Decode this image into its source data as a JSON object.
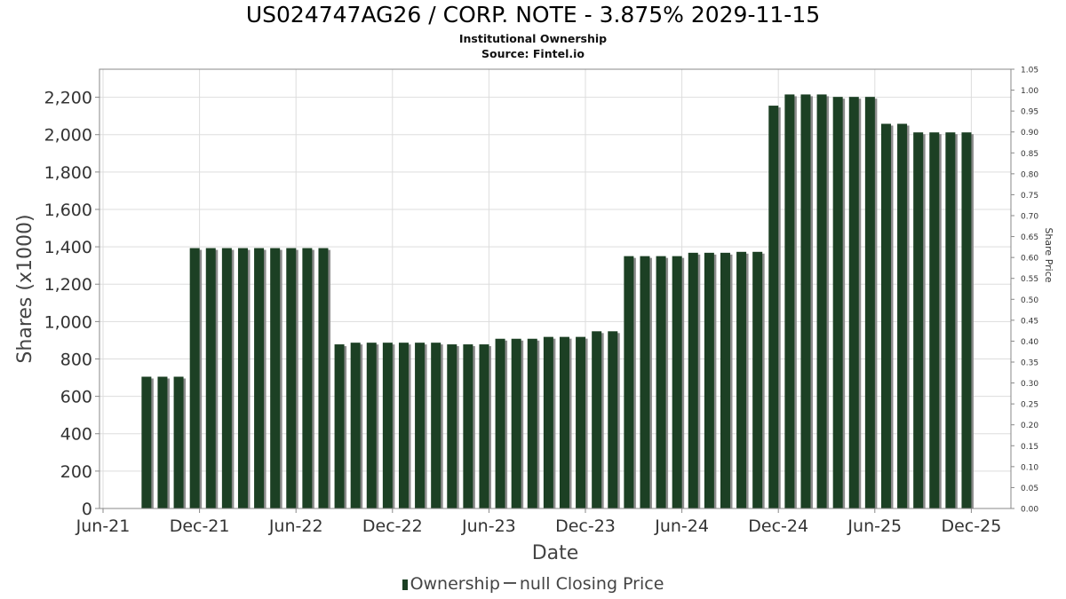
{
  "title": "US024747AG26 / CORP. NOTE - 3.875% 2029-11-15",
  "subtitle": "Institutional Ownership",
  "source": "Source: Fintel.io",
  "legend": {
    "ownership": "Ownership",
    "closing_price": "null Closing Price"
  },
  "colors": {
    "bar": "#1c4024",
    "bar_shadow": "#8c8c8c",
    "grid": "#dddddd",
    "frame": "#888888"
  },
  "chart_data": {
    "type": "bar",
    "title": "US024747AG26 / CORP. NOTE - 3.875% 2029-11-15",
    "xlabel": "Date",
    "ylabel": "Shares (x1000)",
    "y2label": "Share Price",
    "ylim": [
      0,
      2350
    ],
    "y2lim": [
      0,
      1.05
    ],
    "grid": true,
    "legend_position": "bottom",
    "x_tick_labels": [
      "Jun-21",
      "Dec-21",
      "Jun-22",
      "Dec-22",
      "Jun-23",
      "Dec-23",
      "Jun-24",
      "Dec-24",
      "Jun-25",
      "Dec-25"
    ],
    "y_tick_labels": [
      "0",
      "200",
      "400",
      "600",
      "800",
      "1,000",
      "1,200",
      "1,400",
      "1,600",
      "1,800",
      "2,000",
      "2,200"
    ],
    "y_ticks": [
      0,
      200,
      400,
      600,
      800,
      1000,
      1200,
      1400,
      1600,
      1800,
      2000,
      2200
    ],
    "y2_tick_labels": [
      "0.00",
      "0.05",
      "0.10",
      "0.15",
      "0.20",
      "0.25",
      "0.30",
      "0.35",
      "0.40",
      "0.45",
      "0.50",
      "0.55",
      "0.60",
      "0.65",
      "0.70",
      "0.75",
      "0.80",
      "0.85",
      "0.90",
      "0.95",
      "1.00",
      "1.05"
    ],
    "y2_ticks": [
      0,
      0.05,
      0.1,
      0.15,
      0.2,
      0.25,
      0.3,
      0.35,
      0.4,
      0.45,
      0.5,
      0.55,
      0.6,
      0.65,
      0.7,
      0.75,
      0.8,
      0.85,
      0.9,
      0.95,
      1.0,
      1.05
    ],
    "x_start": "2021-06",
    "bar_months_from_start": [
      2.7,
      3.7,
      4.7,
      5.7,
      6.7,
      7.7,
      8.7,
      9.7,
      10.7,
      11.7,
      12.7,
      13.7,
      14.7,
      15.7,
      16.7,
      17.7,
      18.7,
      19.7,
      20.7,
      21.7,
      22.7,
      23.7,
      24.7,
      25.7,
      26.7,
      27.7,
      28.7,
      29.7,
      30.7,
      31.7,
      32.7,
      33.7,
      34.7,
      35.7,
      36.7,
      37.7,
      38.7,
      39.7,
      40.7,
      41.7,
      42.7,
      43.7,
      44.7,
      45.7,
      46.7,
      47.7,
      48.7,
      49.7,
      50.7,
      51.7,
      52.7,
      53.7
    ],
    "series": [
      {
        "name": "Ownership",
        "values": [
          705,
          705,
          705,
          1393,
          1393,
          1393,
          1393,
          1393,
          1393,
          1393,
          1393,
          1393,
          878,
          887,
          887,
          887,
          887,
          887,
          887,
          878,
          878,
          878,
          908,
          908,
          908,
          918,
          918,
          918,
          948,
          948,
          1350,
          1350,
          1350,
          1350,
          1368,
          1368,
          1368,
          1373,
          1373,
          2155,
          2215,
          2215,
          2215,
          2202,
          2202,
          2202,
          2058,
          2058,
          2012,
          2012,
          2012,
          2012
        ]
      }
    ]
  }
}
